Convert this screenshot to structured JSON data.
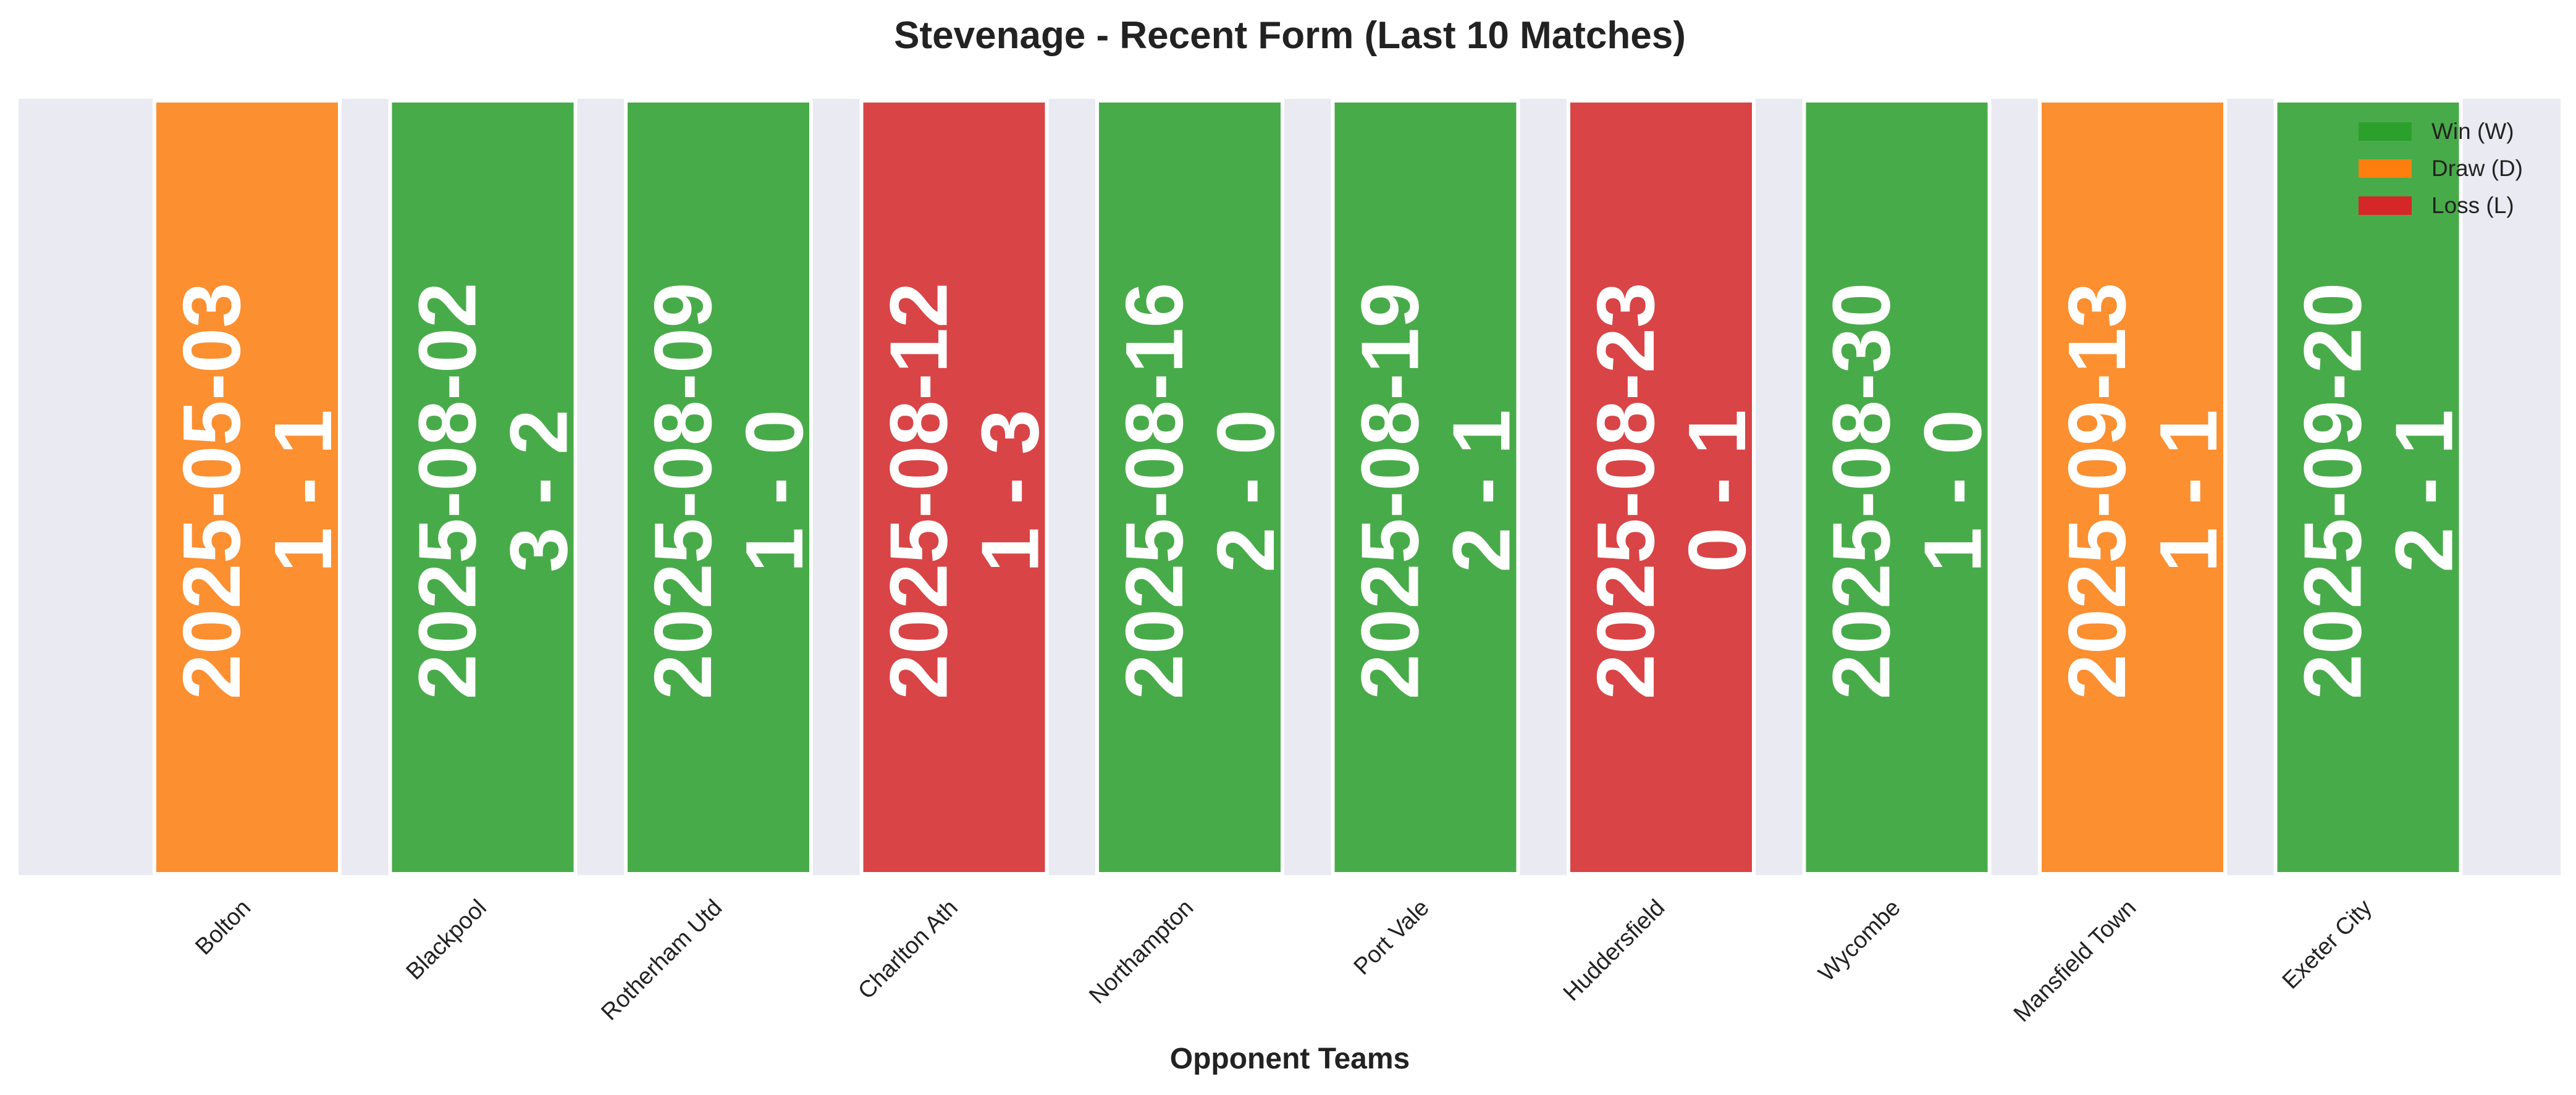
{
  "chart_data": {
    "type": "bar",
    "title": "Stevenage - Recent Form (Last 10 Matches)",
    "xlabel": "Opponent Teams",
    "ylabel": "",
    "grid": false,
    "legend_position": "top-right",
    "legend": [
      {
        "result": "W",
        "label": "Win (W)",
        "color": "#2ca02c"
      },
      {
        "result": "D",
        "label": "Draw (D)",
        "color": "#ff7f0e"
      },
      {
        "result": "L",
        "label": "Loss (L)",
        "color": "#d62728"
      }
    ],
    "categories": [
      "Bolton",
      "Blackpool",
      "Rotherham Utd",
      "Charlton Ath",
      "Northampton",
      "Port Vale",
      "Huddersfield",
      "Wycombe",
      "Mansfield Town",
      "Exeter City"
    ],
    "matches": [
      {
        "opponent": "Bolton",
        "date": "2025-05-03",
        "score": "1 - 1",
        "result": "D"
      },
      {
        "opponent": "Blackpool",
        "date": "2025-08-02",
        "score": "3 - 2",
        "result": "W"
      },
      {
        "opponent": "Rotherham Utd",
        "date": "2025-08-09",
        "score": "1 - 0",
        "result": "W"
      },
      {
        "opponent": "Charlton Ath",
        "date": "2025-08-12",
        "score": "1 - 3",
        "result": "L"
      },
      {
        "opponent": "Northampton",
        "date": "2025-08-16",
        "score": "2 - 0",
        "result": "W"
      },
      {
        "opponent": "Port Vale",
        "date": "2025-08-19",
        "score": "2 - 1",
        "result": "W"
      },
      {
        "opponent": "Huddersfield",
        "date": "2025-08-23",
        "score": "0 - 1",
        "result": "L"
      },
      {
        "opponent": "Wycombe",
        "date": "2025-08-30",
        "score": "1 - 0",
        "result": "W"
      },
      {
        "opponent": "Mansfield Town",
        "date": "2025-09-13",
        "score": "1 - 1",
        "result": "D"
      },
      {
        "opponent": "Exeter City",
        "date": "2025-09-20",
        "score": "2 - 1",
        "result": "W"
      }
    ],
    "colors": {
      "plot_background": "#eaeaf2",
      "bar_edge": "#ffffff",
      "bar_label": "#ffffff",
      "text": "#222222"
    }
  }
}
